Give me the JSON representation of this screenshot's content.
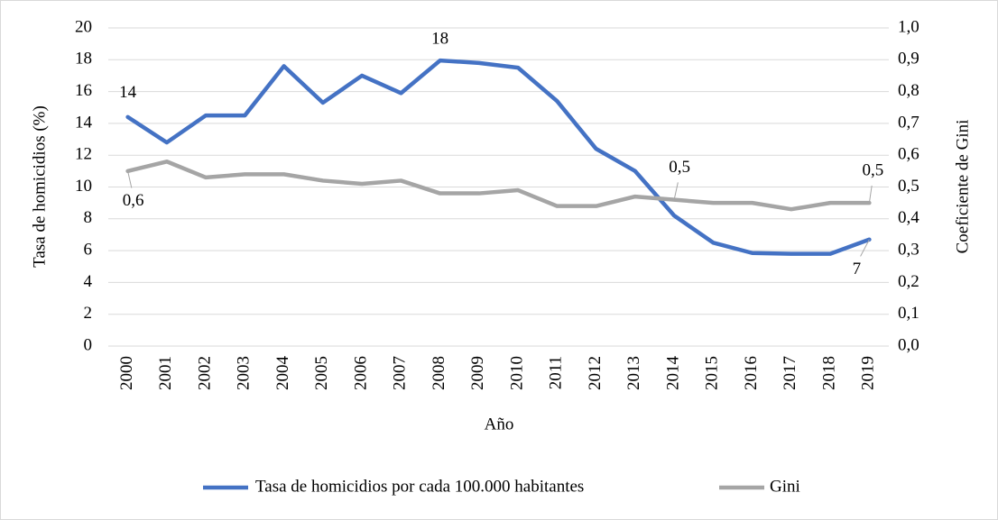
{
  "chart_data": {
    "type": "line",
    "ylabel": "Tasa de homicidios  (%)",
    "y2label": "Coeficiente de Gini",
    "xlabel": "Año",
    "categories": [
      "2000",
      "2001",
      "2002",
      "2003",
      "2004",
      "2005",
      "2006",
      "2007",
      "2008",
      "2009",
      "2010",
      "2011",
      "2012",
      "2013",
      "2014",
      "2015",
      "2016",
      "2017",
      "2018",
      "2019"
    ],
    "series": [
      {
        "name": "Tasa de homicidios por cada 100.000 habitantes",
        "color": "#4472c4",
        "values": [
          14.4,
          12.8,
          14.5,
          14.5,
          17.6,
          15.3,
          17.0,
          15.9,
          17.95,
          17.8,
          17.5,
          15.4,
          12.4,
          11.0,
          8.2,
          6.5,
          5.85,
          5.8,
          5.8,
          6.7
        ],
        "value_labels": [
          "14",
          null,
          null,
          null,
          null,
          null,
          null,
          null,
          "18",
          null,
          null,
          null,
          null,
          null,
          null,
          null,
          null,
          null,
          null,
          "7"
        ]
      },
      {
        "name": "Gini",
        "color": "#a5a5a5",
        "axis": "y2",
        "values": [
          0.55,
          0.58,
          0.53,
          0.54,
          0.54,
          0.52,
          0.51,
          0.52,
          0.48,
          0.48,
          0.49,
          0.44,
          0.44,
          0.47,
          0.46,
          0.45,
          0.45,
          0.43,
          0.45,
          0.45
        ],
        "value_labels": [
          "0,6",
          null,
          null,
          null,
          null,
          null,
          null,
          null,
          null,
          null,
          null,
          null,
          null,
          null,
          "0,5",
          null,
          null,
          null,
          null,
          "0,5"
        ]
      }
    ],
    "ylim": [
      0,
      20
    ],
    "yticks": [
      0,
      2,
      4,
      6,
      8,
      10,
      12,
      14,
      16,
      18,
      20
    ],
    "y2lim": [
      0,
      1
    ],
    "y2ticks": [
      {
        "value": 0,
        "label": "0,0"
      },
      {
        "value": 0.1,
        "label": "0,1"
      },
      {
        "value": 0.2,
        "label": "0,2"
      },
      {
        "value": 0.3,
        "label": "0,3"
      },
      {
        "value": 0.4,
        "label": "0,4"
      },
      {
        "value": 0.5,
        "label": "0,5"
      },
      {
        "value": 0.6,
        "label": "0,6"
      },
      {
        "value": 0.7,
        "label": "0,7"
      },
      {
        "value": 0.8,
        "label": "0,8"
      },
      {
        "value": 0.9,
        "label": "0,9"
      },
      {
        "value": 1,
        "label": "1,0"
      }
    ],
    "grid": true,
    "legend": "bottom"
  }
}
